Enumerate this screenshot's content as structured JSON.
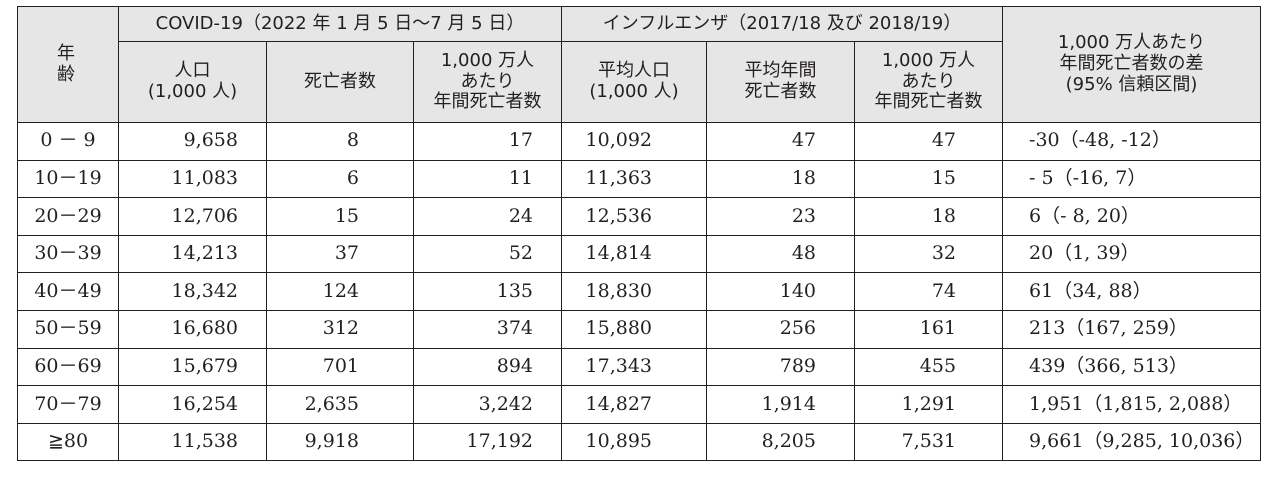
{
  "header": {
    "age": "年 齢",
    "covid_group": "COVID-19（2022 年 1 月 5 日～7 月 5 日）",
    "flu_group": "インフルエンザ（2017/18 及び 2018/19）",
    "diff": "1,000 万人あたり\n年間死亡者数の差\n(95% 信頼区間)",
    "covid_pop": "人口\n(1,000 人)",
    "covid_deaths": "死亡者数",
    "covid_rate": "1,000 万人\nあたり\n年間死亡者数",
    "flu_pop": "平均人口\n(1,000 人)",
    "flu_deaths": "平均年間\n死亡者数",
    "flu_rate": "1,000 万人\nあたり\n年間死亡者数"
  },
  "rows": [
    {
      "age": "0 － 9",
      "covid_pop": "9,658",
      "covid_deaths": "8",
      "covid_rate": "17",
      "flu_pop": "10,092",
      "flu_deaths": "47",
      "flu_rate": "47",
      "diff": "-30（-48, -12）"
    },
    {
      "age": "10－19",
      "covid_pop": "11,083",
      "covid_deaths": "6",
      "covid_rate": "11",
      "flu_pop": "11,363",
      "flu_deaths": "18",
      "flu_rate": "15",
      "diff": "- 5（-16, 7）"
    },
    {
      "age": "20－29",
      "covid_pop": "12,706",
      "covid_deaths": "15",
      "covid_rate": "24",
      "flu_pop": "12,536",
      "flu_deaths": "23",
      "flu_rate": "18",
      "diff": "6（- 8, 20）"
    },
    {
      "age": "30－39",
      "covid_pop": "14,213",
      "covid_deaths": "37",
      "covid_rate": "52",
      "flu_pop": "14,814",
      "flu_deaths": "48",
      "flu_rate": "32",
      "diff": "20（1, 39）"
    },
    {
      "age": "40－49",
      "covid_pop": "18,342",
      "covid_deaths": "124",
      "covid_rate": "135",
      "flu_pop": "18,830",
      "flu_deaths": "140",
      "flu_rate": "74",
      "diff": "61（34, 88）"
    },
    {
      "age": "50－59",
      "covid_pop": "16,680",
      "covid_deaths": "312",
      "covid_rate": "374",
      "flu_pop": "15,880",
      "flu_deaths": "256",
      "flu_rate": "161",
      "diff": "213（167, 259）"
    },
    {
      "age": "60－69",
      "covid_pop": "15,679",
      "covid_deaths": "701",
      "covid_rate": "894",
      "flu_pop": "17,343",
      "flu_deaths": "789",
      "flu_rate": "455",
      "diff": "439（366, 513）"
    },
    {
      "age": "70－79",
      "covid_pop": "16,254",
      "covid_deaths": "2,635",
      "covid_rate": "3,242",
      "flu_pop": "14,827",
      "flu_deaths": "1,914",
      "flu_rate": "1,291",
      "diff": "1,951（1,815, 2,088）"
    },
    {
      "age": "≧80",
      "covid_pop": "11,538",
      "covid_deaths": "9,918",
      "covid_rate": "17,192",
      "flu_pop": "10,895",
      "flu_deaths": "8,205",
      "flu_rate": "7,531",
      "diff": "9,661（9,285, 10,036）"
    }
  ]
}
